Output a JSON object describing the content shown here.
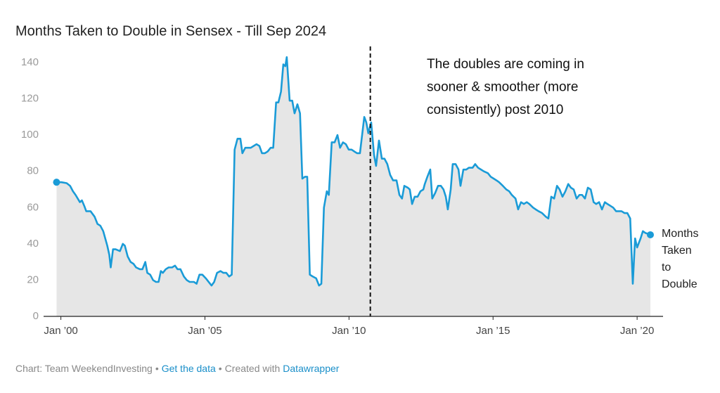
{
  "chart_data": {
    "type": "area",
    "title": "Months Taken to Double in Sensex - Till Sep 2024",
    "x": [
      1999.85,
      2000.02,
      2000.2,
      2000.32,
      2000.42,
      2000.51,
      2000.66,
      2000.73,
      2000.81,
      2000.88,
      2001.03,
      2001.17,
      2001.27,
      2001.37,
      2001.47,
      2001.54,
      2001.61,
      2001.68,
      2001.73,
      2001.81,
      2001.9,
      2002.05,
      2002.15,
      2002.22,
      2002.32,
      2002.42,
      2002.52,
      2002.61,
      2002.74,
      2002.83,
      2002.93,
      2003.0,
      2003.1,
      2003.2,
      2003.3,
      2003.39,
      2003.47,
      2003.54,
      2003.64,
      2003.74,
      2003.86,
      2003.96,
      2004.05,
      2004.15,
      2004.27,
      2004.37,
      2004.47,
      2004.62,
      2004.71,
      2004.81,
      2004.91,
      2005.03,
      2005.13,
      2005.23,
      2005.32,
      2005.42,
      2005.54,
      2005.64,
      2005.74,
      2005.84,
      2005.93,
      2006.03,
      2006.13,
      2006.23,
      2006.3,
      2006.4,
      2006.5,
      2006.59,
      2006.69,
      2006.79,
      2006.89,
      2006.98,
      2007.08,
      2007.18,
      2007.28,
      2007.37,
      2007.47,
      2007.55,
      2007.64,
      2007.72,
      2007.79,
      2007.84,
      2007.94,
      2008.03,
      2008.11,
      2008.21,
      2008.3,
      2008.38,
      2008.47,
      2008.55,
      2008.64,
      2008.74,
      2008.86,
      2008.96,
      2009.04,
      2009.13,
      2009.23,
      2009.3,
      2009.4,
      2009.5,
      2009.6,
      2009.69,
      2009.79,
      2009.89,
      2009.99,
      2010.09,
      2010.18,
      2010.28,
      2010.38,
      2010.53,
      2010.6,
      2010.67,
      2010.77,
      2010.87,
      2010.94,
      2011.04,
      2011.14,
      2011.23,
      2011.33,
      2011.43,
      2011.53,
      2011.65,
      2011.75,
      2011.84,
      2011.92,
      2012.04,
      2012.11,
      2012.19,
      2012.28,
      2012.38,
      2012.48,
      2012.58,
      2012.63,
      2012.72,
      2012.82,
      2012.89,
      2012.99,
      2013.09,
      2013.19,
      2013.28,
      2013.36,
      2013.43,
      2013.53,
      2013.6,
      2013.7,
      2013.8,
      2013.87,
      2013.97,
      2014.07,
      2014.16,
      2014.29,
      2014.38,
      2014.48,
      2014.58,
      2014.68,
      2014.82,
      2014.92,
      2015.02,
      2015.12,
      2015.21,
      2015.34,
      2015.46,
      2015.56,
      2015.65,
      2015.78,
      2015.87,
      2015.97,
      2016.07,
      2016.17,
      2016.26,
      2016.39,
      2016.48,
      2016.58,
      2016.7,
      2016.83,
      2016.92,
      2017.02,
      2017.12,
      2017.22,
      2017.31,
      2017.41,
      2017.51,
      2017.61,
      2017.7,
      2017.8,
      2017.9,
      2018.0,
      2018.09,
      2018.19,
      2018.29,
      2018.39,
      2018.49,
      2018.58,
      2018.68,
      2018.78,
      2018.88,
      2018.97,
      2019.07,
      2019.17,
      2019.27,
      2019.36,
      2019.46,
      2019.56,
      2019.66,
      2019.76,
      2019.85,
      2019.93,
      2020.0,
      2020.12,
      2020.2,
      2020.29,
      2020.46
    ],
    "series": [
      {
        "name": "Months Taken to Double",
        "color": "#1a9bd7",
        "fill": "#e6e6e6",
        "values": [
          74,
          74,
          73.5,
          72,
          69,
          67,
          63,
          64,
          61,
          58,
          58,
          55,
          51,
          50,
          47,
          43,
          39,
          34,
          27,
          37,
          37,
          36,
          40,
          39,
          33,
          30,
          29,
          27,
          26,
          26,
          30,
          24,
          23,
          20,
          19,
          19,
          25,
          24,
          26,
          27,
          27,
          28,
          26,
          26,
          22,
          20,
          19,
          19,
          18,
          23,
          23,
          21,
          19,
          17,
          19,
          24,
          25,
          24,
          24,
          22,
          23,
          92,
          98,
          98,
          90,
          93,
          93,
          93,
          94,
          95,
          94,
          90,
          90,
          91,
          93,
          93,
          118,
          118,
          124,
          139,
          138,
          143,
          119,
          119,
          112,
          117,
          112,
          76,
          77,
          77,
          23,
          22,
          21,
          17,
          18,
          60,
          69,
          67,
          96,
          96,
          100,
          93,
          96,
          95,
          92,
          92,
          91,
          90,
          90,
          110,
          107,
          101,
          107,
          89,
          83,
          97,
          87,
          87,
          84,
          78,
          75,
          75,
          67,
          65,
          72,
          71,
          70,
          62,
          66,
          66,
          69,
          70,
          73,
          77,
          81,
          65,
          68,
          72,
          72,
          70,
          66,
          59,
          70,
          84,
          84,
          81,
          72,
          81,
          81,
          82,
          82,
          84,
          82,
          81,
          80,
          79,
          77,
          76,
          75,
          74,
          72,
          70,
          69,
          67,
          65,
          59,
          63,
          62,
          63,
          62,
          60,
          59,
          58,
          57,
          55,
          54,
          66,
          65,
          72,
          70,
          66,
          69,
          73,
          71,
          70,
          65,
          67,
          67,
          65,
          71,
          70,
          63,
          62,
          63,
          59,
          63,
          62,
          61,
          60,
          58,
          58,
          58,
          57,
          57,
          54,
          18,
          43,
          38,
          43,
          47,
          46,
          45
        ]
      }
    ],
    "xlim": [
      1999.4,
      2020.9
    ],
    "xticks": [
      {
        "value": 2000,
        "label": "Jan ’00"
      },
      {
        "value": 2005,
        "label": "Jan ’05"
      },
      {
        "value": 2010,
        "label": "Jan ’10"
      },
      {
        "value": 2015,
        "label": "Jan ’15"
      },
      {
        "value": 2020,
        "label": "Jan ’20"
      }
    ],
    "ylim": [
      0,
      140
    ],
    "yticks": [
      0,
      20,
      40,
      60,
      80,
      100,
      120,
      140
    ],
    "grid": false,
    "annotation_line": 2010.74,
    "annotation": [
      "The doubles are coming in",
      "sooner & smoother (more",
      "consistently) post 2010"
    ],
    "footer": {
      "source": "Chart: Team WeekendInvesting",
      "separator": "•",
      "get_data": "Get the data",
      "created_with": "Created with",
      "tool": "Datawrapper"
    }
  }
}
